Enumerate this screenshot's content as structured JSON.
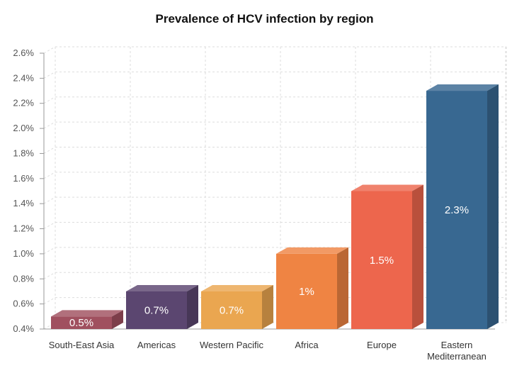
{
  "chart_data": {
    "type": "bar",
    "title": "Prevalence of HCV infection by region",
    "categories": [
      "South-East Asia",
      "Americas",
      "Western Pacific",
      "Africa",
      "Europe",
      "Eastern Mediterranean"
    ],
    "category_lines": [
      [
        "South-East Asia"
      ],
      [
        "Americas"
      ],
      [
        "Western Pacific"
      ],
      [
        "Africa"
      ],
      [
        "Europe"
      ],
      [
        "Eastern",
        "Mediterranean"
      ]
    ],
    "values": [
      0.5,
      0.7,
      0.7,
      1.0,
      1.5,
      2.3
    ],
    "data_labels": [
      "0.5%",
      "0.7%",
      "0.7%",
      "1%",
      "1.5%",
      "2.3%"
    ],
    "colors": [
      "#a0505f",
      "#5b4670",
      "#eaa650",
      "#ef8443",
      "#ed664d",
      "#386891"
    ],
    "ylim": [
      0.4,
      2.6
    ],
    "yticks": [
      0.4,
      0.6,
      0.8,
      1.0,
      1.2,
      1.4,
      1.6,
      1.8,
      2.0,
      2.2,
      2.4,
      2.6
    ],
    "ytick_labels": [
      "0.4%",
      "0.6%",
      "0.8%",
      "1.0%",
      "1.2%",
      "1.4%",
      "1.6%",
      "1.8%",
      "2.0%",
      "2.2%",
      "2.4%",
      "2.6%"
    ],
    "xlabel": "",
    "ylabel": "",
    "grid": true,
    "style": "3d"
  }
}
